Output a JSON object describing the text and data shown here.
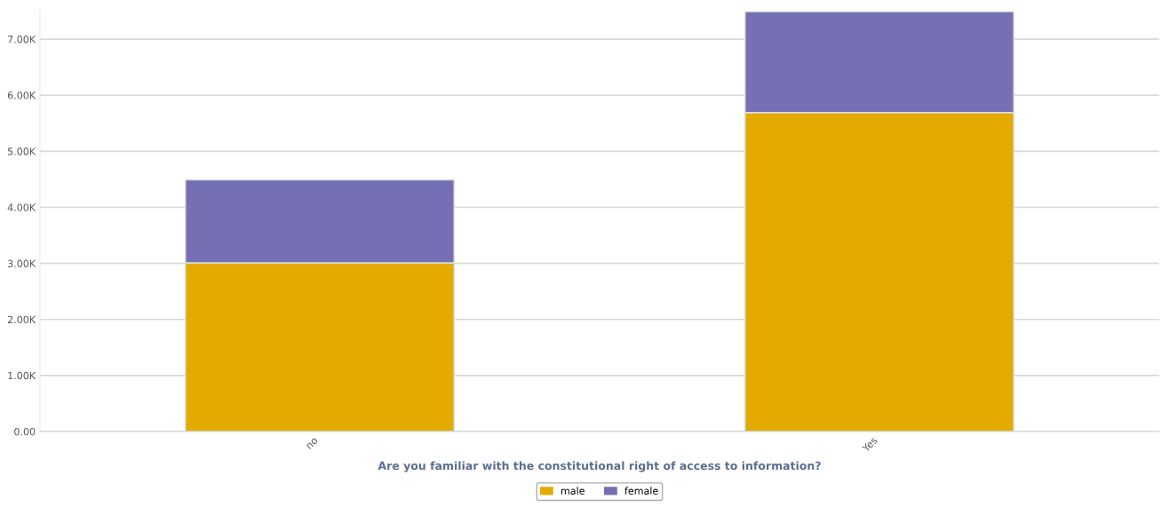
{
  "chart_data": {
    "type": "bar",
    "stacked": true,
    "xlabel": "Are you familiar with the constitutional right of access to information?",
    "categories": [
      "no",
      "Yes"
    ],
    "series": [
      {
        "name": "male",
        "color": "#e3ab00",
        "values": [
          3010,
          5690
        ]
      },
      {
        "name": "female",
        "color": "#7570b3",
        "values": [
          1480,
          1800
        ]
      }
    ],
    "ylim": [
      0,
      7540
    ],
    "yticks": [
      {
        "value": 0,
        "label": "0.00"
      },
      {
        "value": 1000,
        "label": "1.00K"
      },
      {
        "value": 2000,
        "label": "2.00K"
      },
      {
        "value": 3000,
        "label": "3.00K"
      },
      {
        "value": 4000,
        "label": "4.00K"
      },
      {
        "value": 5000,
        "label": "5.00K"
      },
      {
        "value": 6000,
        "label": "6.00K"
      },
      {
        "value": 7000,
        "label": "7.00K"
      }
    ],
    "grid": "y",
    "legend": "bottom"
  }
}
